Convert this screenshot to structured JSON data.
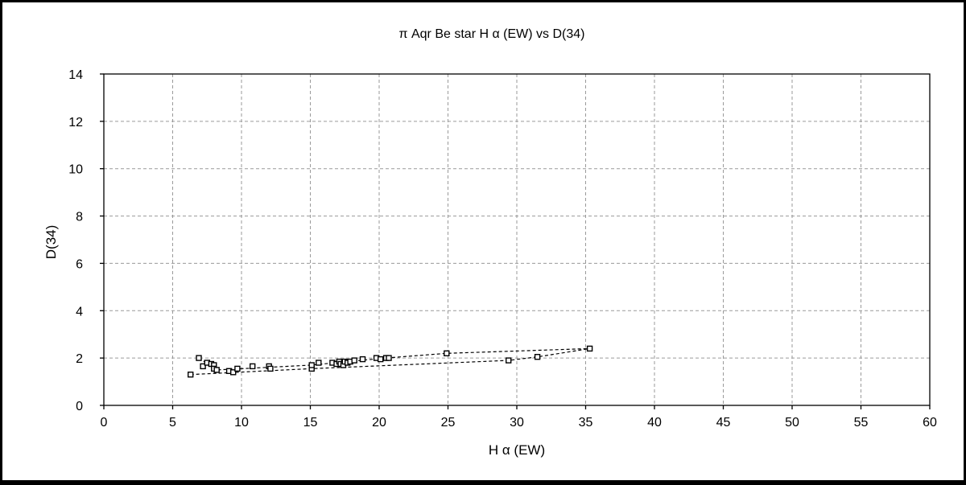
{
  "chart_data": {
    "type": "scatter",
    "title": "π  Aqr     Be star     H α (EW) vs D(34)",
    "xlabel": "H α (EW)",
    "ylabel": "D(34)",
    "xlim": [
      0,
      60
    ],
    "ylim": [
      0,
      14
    ],
    "xticks": [
      0,
      5,
      10,
      15,
      20,
      25,
      30,
      35,
      40,
      45,
      50,
      55,
      60
    ],
    "yticks": [
      0,
      2,
      4,
      6,
      8,
      10,
      12,
      14
    ],
    "grid": true,
    "series": [
      {
        "marker": "open-square",
        "points": [
          [
            6.3,
            1.3
          ],
          [
            6.9,
            2.0
          ],
          [
            7.2,
            1.65
          ],
          [
            7.5,
            1.8
          ],
          [
            7.8,
            1.75
          ],
          [
            8.0,
            1.7
          ],
          [
            8.0,
            1.55
          ],
          [
            8.2,
            1.5
          ],
          [
            9.1,
            1.45
          ],
          [
            9.4,
            1.4
          ],
          [
            9.7,
            1.55
          ],
          [
            10.8,
            1.65
          ],
          [
            12.0,
            1.65
          ],
          [
            12.1,
            1.55
          ],
          [
            15.1,
            1.55
          ],
          [
            15.1,
            1.7
          ],
          [
            15.6,
            1.8
          ],
          [
            16.6,
            1.8
          ],
          [
            16.9,
            1.75
          ],
          [
            17.1,
            1.85
          ],
          [
            17.2,
            1.75
          ],
          [
            17.4,
            1.7
          ],
          [
            17.5,
            1.85
          ],
          [
            17.7,
            1.8
          ],
          [
            17.9,
            1.85
          ],
          [
            18.2,
            1.9
          ],
          [
            18.8,
            1.95
          ],
          [
            19.8,
            2.0
          ],
          [
            20.1,
            1.95
          ],
          [
            20.5,
            2.0
          ],
          [
            20.7,
            2.0
          ],
          [
            24.9,
            2.2
          ],
          [
            29.4,
            1.9
          ],
          [
            31.5,
            2.05
          ],
          [
            35.3,
            2.4
          ]
        ]
      }
    ],
    "trendlines": [
      [
        [
          6.3,
          1.3
        ],
        [
          15.0,
          1.55
        ],
        [
          29.4,
          1.9
        ],
        [
          31.5,
          2.05
        ],
        [
          35.3,
          2.4
        ]
      ],
      [
        [
          6.9,
          2.0
        ],
        [
          8.2,
          1.5
        ],
        [
          10.0,
          1.55
        ],
        [
          15.0,
          1.7
        ],
        [
          20.5,
          2.0
        ],
        [
          24.9,
          2.2
        ],
        [
          35.3,
          2.4
        ]
      ]
    ]
  }
}
